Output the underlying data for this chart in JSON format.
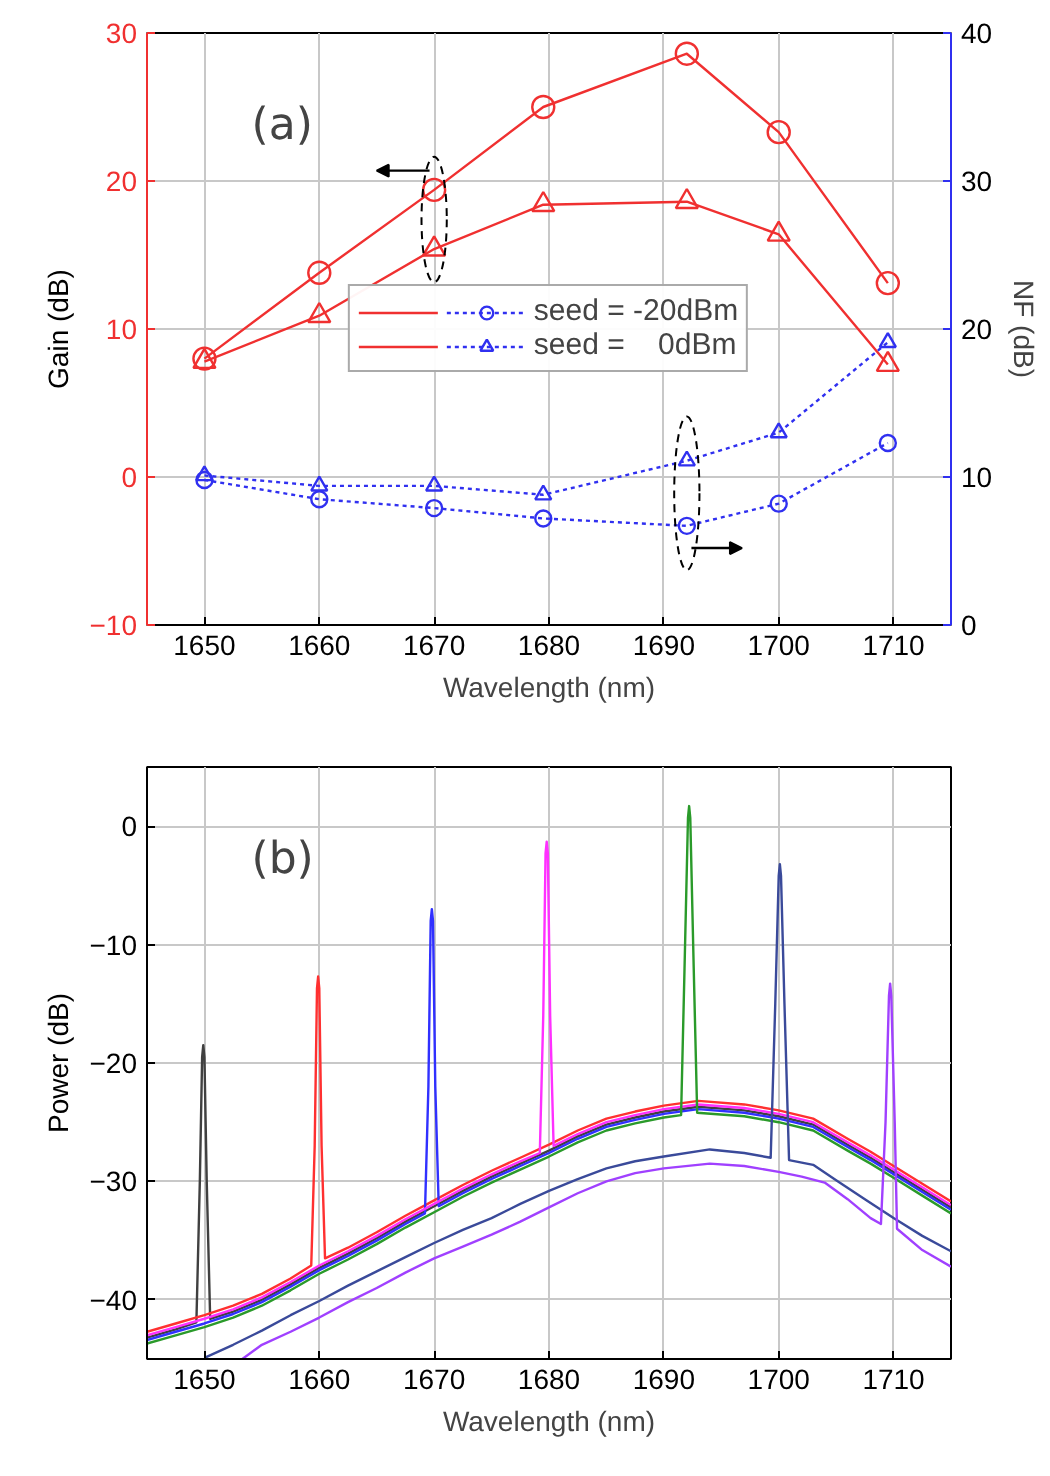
{
  "chart_data": [
    {
      "type": "line",
      "xlabel": "Wavelength (nm)",
      "ylabel": "Gain (dB)",
      "y2label": "NF (dB)",
      "annotations": [
        "(a)"
      ],
      "xlim": [
        1645,
        1715
      ],
      "xticks": [
        1650,
        1660,
        1670,
        1680,
        1690,
        1700,
        1710
      ],
      "ylim": [
        -10,
        30
      ],
      "yticks": [
        -10,
        0,
        10,
        20,
        30
      ],
      "y2lim": [
        0,
        40
      ],
      "y2ticks": [
        0,
        10,
        20,
        30,
        40
      ],
      "grid": true,
      "legend": "center",
      "series": [
        {
          "color": "#f03030",
          "marker": "circle",
          "line_style": "solid",
          "x": [
            1650,
            1660,
            1670,
            1679.5,
            1692,
            1700,
            1709.5
          ],
          "values": [
            8.0,
            13.8,
            19.4,
            25.0,
            28.6,
            23.3,
            13.1
          ]
        },
        {
          "color": "#f03030",
          "marker": "triangle",
          "line_style": "solid",
          "x": [
            1650,
            1660,
            1670,
            1679.5,
            1692,
            1700,
            1709.5
          ],
          "values": [
            7.8,
            10.9,
            15.4,
            18.4,
            18.6,
            16.4,
            7.6
          ]
        },
        {
          "name": "seed = -20dBm",
          "color": "#3030f0",
          "marker": "circle",
          "line_style": "dotted",
          "axis": "y2",
          "x": [
            1650,
            1660,
            1670,
            1679.5,
            1692,
            1700,
            1709.5
          ],
          "values": [
            9.8,
            8.5,
            7.9,
            7.2,
            6.7,
            8.2,
            12.3
          ]
        },
        {
          "name": "seed =    0dBm",
          "color": "#3030f0",
          "marker": "triangle",
          "line_style": "dotted",
          "axis": "y2",
          "x": [
            1650,
            1660,
            1670,
            1679.5,
            1692,
            1700,
            1709.5
          ],
          "values": [
            10.1,
            9.4,
            9.4,
            8.8,
            11.1,
            13.0,
            19.1
          ]
        }
      ]
    },
    {
      "type": "line",
      "xlabel": "Wavelength (nm)",
      "ylabel": "Power (dB)",
      "annotations": [
        "(b)"
      ],
      "xlim": [
        1645,
        1715
      ],
      "xticks": [
        1650,
        1660,
        1670,
        1680,
        1690,
        1700,
        1710
      ],
      "ylim": [
        -45,
        5
      ],
      "yticks": [
        -40,
        -30,
        -20,
        -10,
        0
      ],
      "grid": true,
      "series": [
        {
          "color": "#404040",
          "x": [
            1645,
            1647.5,
            1649.3,
            1649.6,
            1649.8,
            1649.9,
            1650.0,
            1650.2,
            1650.5,
            1652.5,
            1655,
            1657.5,
            1660,
            1662.5,
            1665,
            1667.5,
            1670,
            1672.5,
            1675,
            1677.5,
            1680,
            1682.5,
            1685,
            1687.5,
            1690,
            1693,
            1697,
            1700,
            1703,
            1706,
            1708,
            1710,
            1712.5,
            1715
          ],
          "values": [
            -43.2,
            -42.5,
            -41.9,
            -30,
            -19.5,
            -18.5,
            -19.5,
            -30,
            -41.6,
            -41.0,
            -40.0,
            -38.7,
            -37.3,
            -36.1,
            -34.8,
            -33.4,
            -32.1,
            -30.8,
            -29.6,
            -28.5,
            -27.4,
            -26.2,
            -25.2,
            -24.6,
            -24.1,
            -23.7,
            -24.0,
            -24.5,
            -25.2,
            -26.9,
            -28.0,
            -29.2,
            -30.7,
            -32.2
          ]
        },
        {
          "color": "#ff3030",
          "x": [
            1645,
            1647.5,
            1650,
            1652.5,
            1655,
            1657.5,
            1659.3,
            1659.6,
            1659.8,
            1659.9,
            1660.0,
            1660.2,
            1660.5,
            1662.5,
            1665,
            1667.5,
            1670,
            1672.5,
            1675,
            1677.5,
            1680,
            1682.5,
            1685,
            1687.5,
            1690,
            1693,
            1697,
            1700,
            1703,
            1706,
            1708,
            1710,
            1712.5,
            1715
          ],
          "values": [
            -42.7,
            -42.0,
            -41.3,
            -40.5,
            -39.5,
            -38.2,
            -37.1,
            -27,
            -13.7,
            -12.7,
            -13.7,
            -27,
            -36.5,
            -35.6,
            -34.3,
            -32.9,
            -31.6,
            -30.3,
            -29.1,
            -28.0,
            -26.9,
            -25.7,
            -24.7,
            -24.1,
            -23.6,
            -23.2,
            -23.5,
            -24.0,
            -24.7,
            -26.4,
            -27.5,
            -28.7,
            -30.2,
            -31.7
          ]
        },
        {
          "color": "#3030ff",
          "x": [
            1645,
            1647.5,
            1650,
            1652.5,
            1655,
            1657.5,
            1660,
            1662.5,
            1665,
            1667.5,
            1669.2,
            1669.5,
            1669.7,
            1669.8,
            1669.9,
            1670.1,
            1670.4,
            1672.5,
            1675,
            1677.5,
            1680,
            1682.5,
            1685,
            1687.5,
            1690,
            1693,
            1697,
            1700,
            1703,
            1706,
            1708,
            1710,
            1712.5,
            1715
          ],
          "values": [
            -43.4,
            -42.7,
            -42.0,
            -41.2,
            -40.2,
            -38.9,
            -37.5,
            -36.3,
            -35.0,
            -33.6,
            -32.7,
            -22,
            -8,
            -7.0,
            -8,
            -22,
            -32.1,
            -31.0,
            -29.8,
            -28.7,
            -27.6,
            -26.4,
            -25.4,
            -24.8,
            -24.3,
            -23.9,
            -24.2,
            -24.7,
            -25.4,
            -27.1,
            -28.2,
            -29.4,
            -30.9,
            -32.4
          ]
        },
        {
          "color": "#ff30ff",
          "x": [
            1645,
            1647.5,
            1650,
            1652.5,
            1655,
            1657.5,
            1660,
            1662.5,
            1665,
            1667.5,
            1670,
            1672.5,
            1675,
            1677.5,
            1679.2,
            1679.5,
            1679.7,
            1679.8,
            1679.9,
            1680.1,
            1680.4,
            1682.5,
            1685,
            1687.5,
            1690,
            1693,
            1697,
            1700,
            1703,
            1706,
            1708,
            1710,
            1712.5,
            1715
          ],
          "values": [
            -43.0,
            -42.3,
            -41.6,
            -40.8,
            -39.8,
            -38.5,
            -37.1,
            -35.9,
            -34.6,
            -33.2,
            -31.9,
            -30.6,
            -29.4,
            -28.3,
            -27.6,
            -16,
            -2.3,
            -1.3,
            -2.3,
            -16,
            -27.0,
            -26.0,
            -25.0,
            -24.4,
            -23.9,
            -23.5,
            -23.8,
            -24.3,
            -25.0,
            -26.7,
            -27.8,
            -29.0,
            -30.5,
            -32.0
          ]
        },
        {
          "color": "#2a9a2a",
          "x": [
            1645,
            1647.5,
            1650,
            1652.5,
            1655,
            1657.5,
            1660,
            1662.5,
            1665,
            1667.5,
            1670,
            1672.5,
            1675,
            1677.5,
            1680,
            1682.5,
            1685,
            1687.5,
            1690,
            1691.5,
            1691.8,
            1692.1,
            1692.2,
            1692.3,
            1692.6,
            1692.9,
            1697,
            1700,
            1703,
            1706,
            1708,
            1710,
            1712.5,
            1715
          ],
          "values": [
            -43.7,
            -43.0,
            -42.3,
            -41.5,
            -40.5,
            -39.2,
            -37.8,
            -36.6,
            -35.3,
            -33.9,
            -32.6,
            -31.3,
            -30.1,
            -29.0,
            -27.9,
            -26.7,
            -25.7,
            -25.1,
            -24.6,
            -24.4,
            -12,
            0.7,
            1.7,
            0.7,
            -12,
            -24.2,
            -24.5,
            -25.0,
            -25.7,
            -27.4,
            -28.5,
            -29.7,
            -31.2,
            -32.7
          ]
        },
        {
          "color": "#3a4a9a",
          "x": [
            1650,
            1652.5,
            1655,
            1657.5,
            1660,
            1662.5,
            1665,
            1667.5,
            1670,
            1672.5,
            1675,
            1677.5,
            1680,
            1682.5,
            1685,
            1687.5,
            1690,
            1694,
            1697,
            1699.3,
            1699.7,
            1700.0,
            1700.1,
            1700.2,
            1700.5,
            1700.9,
            1703,
            1705,
            1707.5,
            1710,
            1712.5,
            1715
          ],
          "values": [
            -44.9,
            -43.8,
            -42.6,
            -41.3,
            -40.1,
            -38.8,
            -37.6,
            -36.4,
            -35.2,
            -34.1,
            -33.1,
            -31.9,
            -30.8,
            -29.8,
            -28.9,
            -28.3,
            -27.9,
            -27.3,
            -27.6,
            -28.0,
            -15,
            -4.2,
            -3.2,
            -4.2,
            -15,
            -28.2,
            -28.6,
            -29.9,
            -31.5,
            -33.1,
            -34.6,
            -35.9
          ]
        },
        {
          "color": "#a040ff",
          "x": [
            1653.3,
            1655,
            1657.5,
            1660,
            1662.5,
            1665,
            1667.5,
            1670,
            1672.5,
            1675,
            1677.5,
            1680,
            1682.5,
            1685,
            1687.5,
            1690,
            1694,
            1697,
            1700,
            1702,
            1704,
            1706,
            1708,
            1708.9,
            1709.3,
            1709.6,
            1709.7,
            1709.8,
            1710.1,
            1710.3,
            1712.5,
            1715
          ],
          "values": [
            -45.0,
            -43.8,
            -42.7,
            -41.5,
            -40.2,
            -39.0,
            -37.7,
            -36.5,
            -35.5,
            -34.5,
            -33.4,
            -32.2,
            -31.0,
            -30.0,
            -29.3,
            -28.9,
            -28.5,
            -28.7,
            -29.2,
            -29.6,
            -30.1,
            -31.5,
            -33.1,
            -33.6,
            -25,
            -14.3,
            -13.3,
            -14.3,
            -25,
            -34.0,
            -35.8,
            -37.2
          ]
        }
      ]
    }
  ]
}
